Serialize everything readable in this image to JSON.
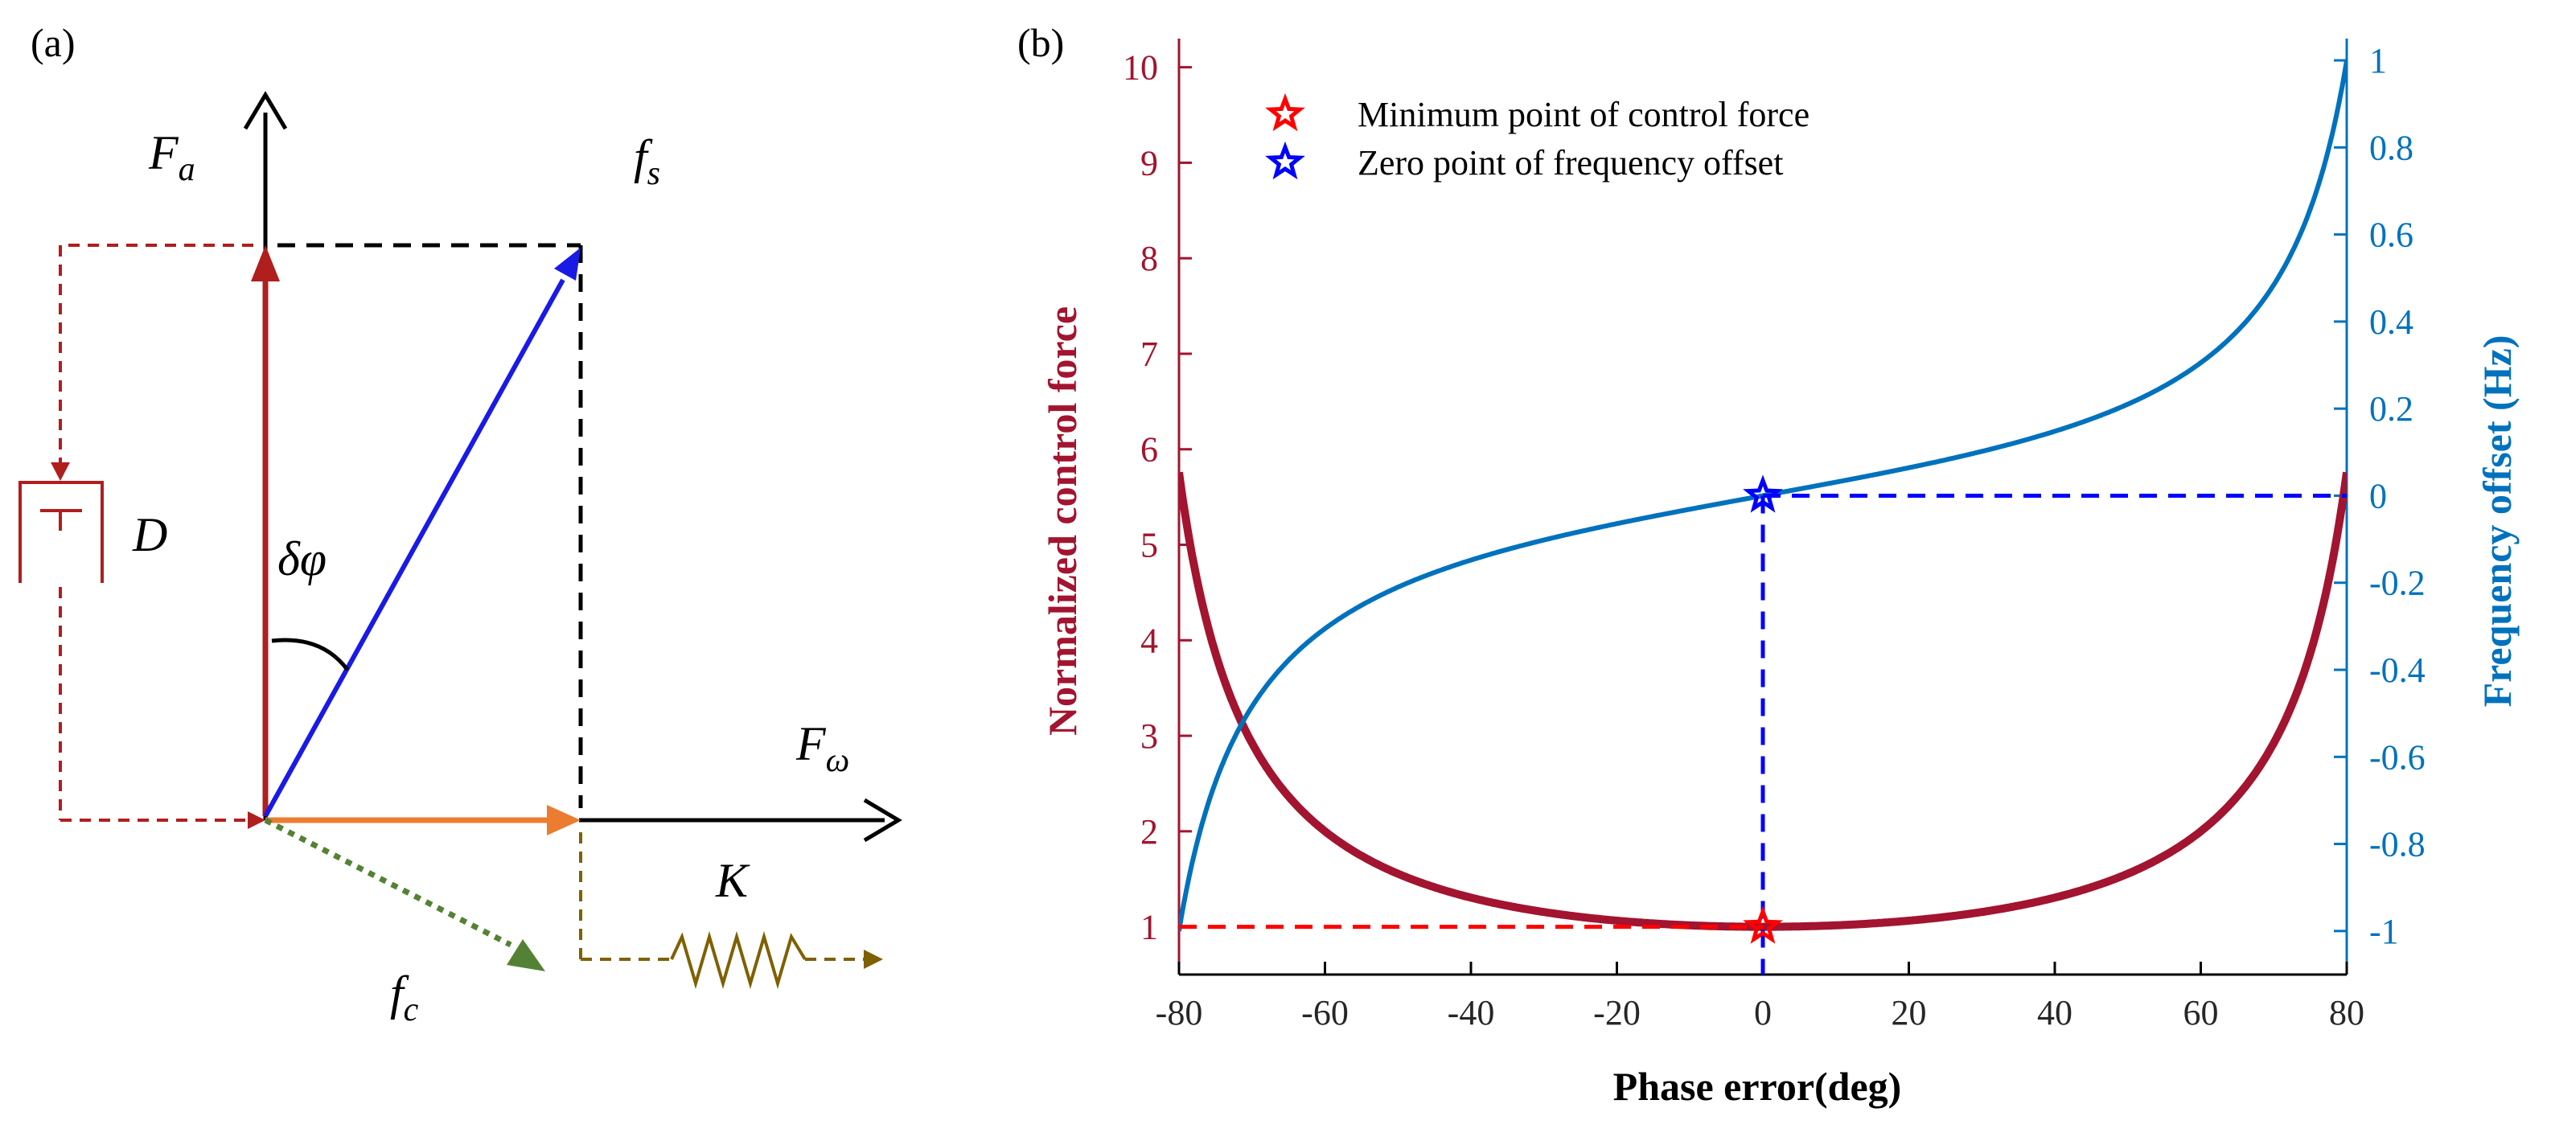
{
  "panel_a": {
    "label": "(a)",
    "vectors": [
      {
        "name": "F",
        "sub": "a"
      },
      {
        "name": "f",
        "sub": "s"
      },
      {
        "name": "F",
        "sub": "ω"
      },
      {
        "name": "f",
        "sub": "c"
      }
    ],
    "angle_label": "δφ",
    "damper_label": "D",
    "spring_label": "K",
    "colors": {
      "damping": "#b01e1e",
      "resultant": "#1a1ae6",
      "stiffness": "#ec7c30",
      "control": "#548235",
      "spring": "#7f6000",
      "guide": "#000000"
    }
  },
  "panel_b": {
    "label": "(b)"
  },
  "chart_data": {
    "type": "line",
    "x": {
      "label": "Phase error(deg)",
      "range": [
        -80,
        80
      ],
      "ticks": [
        -80,
        -60,
        -40,
        -20,
        0,
        20,
        40,
        60,
        80
      ],
      "tick_labels": [
        "-80",
        "-60",
        "-40",
        "-20",
        "0",
        "20",
        "40",
        "60",
        "80"
      ]
    },
    "y_left": {
      "label": "Normalized control force",
      "range": [
        0.5,
        10.3
      ],
      "ticks": [
        1,
        2,
        3,
        4,
        5,
        6,
        7,
        8,
        9,
        10
      ],
      "tick_labels": [
        "1",
        "2",
        "3",
        "4",
        "5",
        "6",
        "7",
        "8",
        "9",
        "10"
      ],
      "color": "#a2142f"
    },
    "y_right": {
      "label": "Frequency offset (Hz)",
      "range": [
        -1.1,
        1.05
      ],
      "ticks": [
        -1,
        -0.8,
        -0.6,
        -0.4,
        -0.2,
        0,
        0.2,
        0.4,
        0.6,
        0.8,
        1
      ],
      "tick_labels": [
        "-1",
        "-0.8",
        "-0.6",
        "-0.4",
        "-0.2",
        "0",
        "0.2",
        "0.4",
        "0.6",
        "0.8",
        "1"
      ],
      "color": "#0072bd"
    },
    "series": [
      {
        "name": "Normalized control force",
        "axis": "left",
        "color": "#a2142f",
        "model": "1/cos(phase)",
        "x": [
          -80,
          -75,
          -70,
          -65,
          -60,
          -50,
          -40,
          -30,
          -20,
          -10,
          0,
          10,
          20,
          30,
          40,
          50,
          60,
          65,
          70,
          75,
          80
        ],
        "values": [
          5.76,
          3.86,
          2.92,
          2.37,
          2.0,
          1.56,
          1.31,
          1.15,
          1.06,
          1.02,
          1.0,
          1.02,
          1.06,
          1.15,
          1.31,
          1.56,
          2.0,
          2.37,
          2.92,
          3.86,
          5.76
        ]
      },
      {
        "name": "Frequency offset",
        "axis": "right",
        "color": "#0072bd",
        "model": "tan(phase)/tan(80deg)",
        "x": [
          -80,
          -75,
          -70,
          -65,
          -60,
          -50,
          -40,
          -30,
          -20,
          -10,
          0,
          10,
          20,
          30,
          40,
          50,
          60,
          65,
          70,
          75,
          80
        ],
        "values": [
          -1.0,
          -0.66,
          -0.48,
          -0.38,
          -0.31,
          -0.21,
          -0.15,
          -0.1,
          -0.064,
          -0.031,
          0.0,
          0.031,
          0.064,
          0.1,
          0.15,
          0.21,
          0.31,
          0.38,
          0.48,
          0.66,
          1.0
        ]
      }
    ],
    "markers": [
      {
        "label": "Minimum point of control force",
        "x": 0,
        "y": 1,
        "axis": "left",
        "color": "#ff0000"
      },
      {
        "label": "Zero point of frequency offset",
        "x": 0,
        "y": 0,
        "axis": "right",
        "color": "#0000ff"
      }
    ],
    "legend_position": "top-left",
    "grid": false
  }
}
